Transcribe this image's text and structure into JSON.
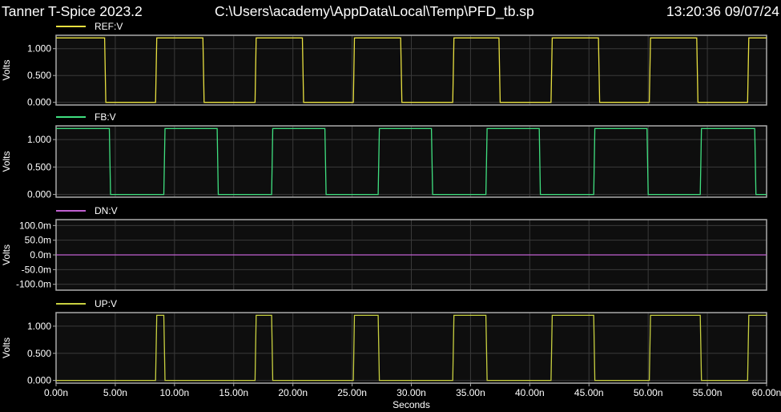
{
  "header": {
    "app": "Tanner T-Spice 2023.2",
    "file": "C:\\Users\\academy\\AppData\\Local\\Temp\\PFD_tb.sp",
    "timestamp": "13:20:36 09/07/24"
  },
  "colors": {
    "ref": "#e8e040",
    "fb": "#40e080",
    "dn": "#c060d0",
    "up": "#c8d040",
    "grid": "#3a3a3a",
    "frame": "#aaaaaa",
    "plot_bg": "#0e0e0e"
  },
  "chart_data": [
    {
      "type": "line",
      "legend": "REF:V",
      "ylabel": "Volts",
      "ylim": [
        -0.05,
        1.25
      ],
      "yticks": [
        1.0,
        0.5,
        0.0
      ],
      "ytick_labels": [
        "1.000",
        "0.500",
        "0.000"
      ],
      "xlim": [
        0,
        60
      ],
      "series": [
        {
          "name": "REF:V",
          "x": [
            0,
            4.1,
            4.2,
            8.4,
            8.5,
            12.4,
            12.5,
            16.8,
            16.9,
            20.8,
            20.9,
            25.1,
            25.2,
            29.1,
            29.2,
            33.5,
            33.6,
            37.4,
            37.5,
            41.8,
            41.9,
            45.8,
            45.9,
            50.1,
            50.2,
            54.1,
            54.2,
            58.4,
            58.5,
            60
          ],
          "y": [
            1.2,
            1.2,
            0,
            0,
            1.2,
            1.2,
            0,
            0,
            1.2,
            1.2,
            0,
            0,
            1.2,
            1.2,
            0,
            0,
            1.2,
            1.2,
            0,
            0,
            1.2,
            1.2,
            0,
            0,
            1.2,
            1.2,
            0,
            0,
            1.2,
            1.2
          ]
        }
      ]
    },
    {
      "type": "line",
      "legend": "FB:V",
      "ylabel": "Volts",
      "ylim": [
        -0.05,
        1.25
      ],
      "yticks": [
        1.0,
        0.5,
        0.0
      ],
      "ytick_labels": [
        "1.000",
        "0.500",
        "0.000"
      ],
      "xlim": [
        0,
        60
      ],
      "series": [
        {
          "name": "FB:V",
          "x": [
            0,
            4.5,
            4.6,
            9.1,
            9.2,
            13.6,
            13.7,
            18.2,
            18.3,
            22.7,
            22.8,
            27.2,
            27.3,
            31.7,
            31.8,
            36.3,
            36.4,
            40.8,
            40.9,
            45.4,
            45.5,
            49.9,
            50.0,
            54.4,
            54.5,
            59.0,
            59.1,
            60
          ],
          "y": [
            1.2,
            1.2,
            0,
            0,
            1.2,
            1.2,
            0,
            0,
            1.2,
            1.2,
            0,
            0,
            1.2,
            1.2,
            0,
            0,
            1.2,
            1.2,
            0,
            0,
            1.2,
            1.2,
            0,
            0,
            1.2,
            1.2,
            0,
            0
          ]
        }
      ]
    },
    {
      "type": "line",
      "legend": "DN:V",
      "ylabel": "Volts",
      "ylim": [
        -0.12,
        0.12
      ],
      "yticks": [
        0.1,
        0.05,
        0.0,
        -0.05,
        -0.1
      ],
      "ytick_labels": [
        "100.0m",
        "50.0m",
        "0.0m",
        "-50.0m",
        "-100.0m"
      ],
      "xlim": [
        0,
        60
      ],
      "series": [
        {
          "name": "DN:V",
          "x": [
            0,
            60
          ],
          "y": [
            0,
            0
          ]
        }
      ]
    },
    {
      "type": "line",
      "legend": "UP:V",
      "ylabel": "Volts",
      "ylim": [
        -0.05,
        1.25
      ],
      "yticks": [
        1.0,
        0.5,
        0.0
      ],
      "ytick_labels": [
        "1.000",
        "0.500",
        "0.000"
      ],
      "xlim": [
        0,
        60
      ],
      "xticks": [
        0,
        5,
        10,
        15,
        20,
        25,
        30,
        35,
        40,
        45,
        50,
        55,
        60
      ],
      "xtick_labels": [
        "0.00n",
        "5.00n",
        "10.00n",
        "15.00n",
        "20.00n",
        "25.00n",
        "30.00n",
        "35.00n",
        "40.00n",
        "45.00n",
        "50.00n",
        "55.00n",
        "60.00n"
      ],
      "xlabel": "Seconds",
      "series": [
        {
          "name": "UP:V",
          "x": [
            0,
            8.4,
            8.5,
            9.1,
            9.2,
            16.8,
            16.9,
            18.2,
            18.3,
            25.1,
            25.2,
            27.2,
            27.3,
            33.5,
            33.6,
            36.3,
            36.4,
            41.8,
            41.9,
            45.4,
            45.5,
            50.1,
            50.2,
            54.4,
            54.5,
            58.4,
            58.5,
            60
          ],
          "y": [
            0,
            0,
            1.2,
            1.2,
            0,
            0,
            1.2,
            1.2,
            0,
            0,
            1.2,
            1.2,
            0,
            0,
            1.2,
            1.2,
            0,
            0,
            1.2,
            1.2,
            0,
            0,
            1.2,
            1.2,
            0,
            0,
            1.2,
            1.2
          ]
        }
      ]
    }
  ]
}
